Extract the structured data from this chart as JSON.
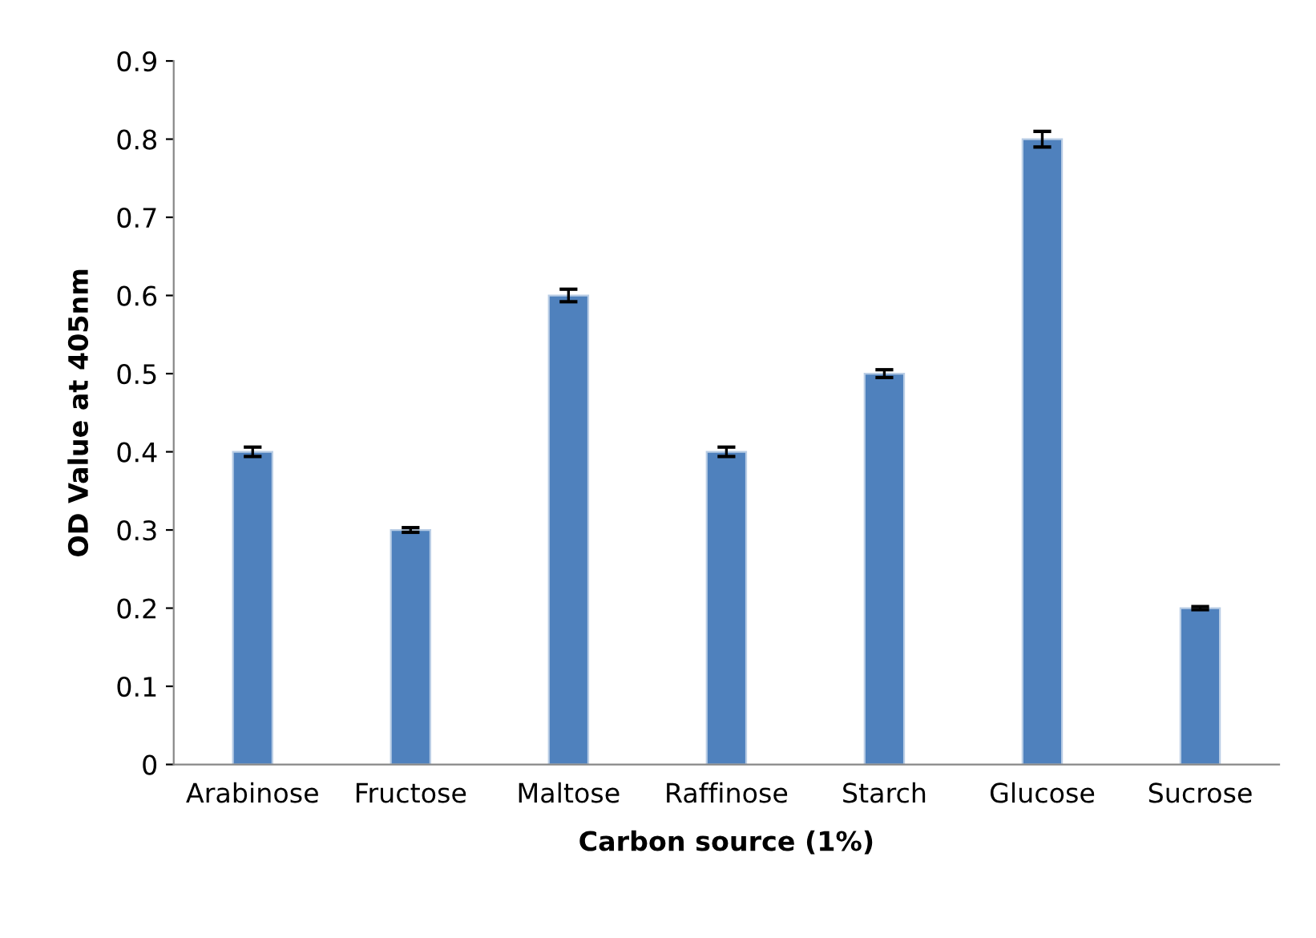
{
  "chart_data": {
    "type": "bar",
    "xlabel": "Carbon source (1%)",
    "ylabel": "OD Value at 405nm",
    "categories": [
      "Arabinose",
      "Fructose",
      "Maltose",
      "Raffinose",
      "Starch",
      "Glucose",
      "Sucrose"
    ],
    "values": [
      0.4,
      0.3,
      0.6,
      0.4,
      0.5,
      0.8,
      0.2
    ],
    "errors": [
      0.006,
      0.003,
      0.008,
      0.006,
      0.005,
      0.01,
      0.002
    ],
    "color": "#4f81bd",
    "ylim": [
      0,
      0.9
    ],
    "yticks": [
      {
        "value": 0,
        "label": "0"
      },
      0.1,
      0.2,
      0.3,
      0.4,
      0.5,
      0.6,
      0.7,
      0.8,
      0.9
    ],
    "grid": false
  }
}
